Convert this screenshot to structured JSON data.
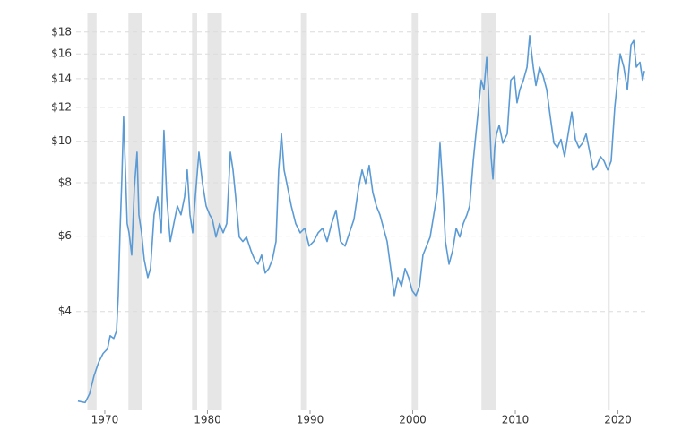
{
  "chart_data": {
    "type": "line",
    "log_scale": true,
    "grid": true,
    "xlim": [
      1967.21,
      2022.66
    ],
    "xticks": [
      1970,
      1980,
      1990,
      2000,
      2010,
      2020
    ],
    "ylim": [
      2.35,
      19.9
    ],
    "yticks": [
      {
        "value": 4,
        "label": "$4"
      },
      {
        "value": 6,
        "label": "$6"
      },
      {
        "value": 8,
        "label": "$8"
      },
      {
        "value": 10,
        "label": "$10"
      },
      {
        "value": 12,
        "label": "$12"
      },
      {
        "value": 14,
        "label": "$14"
      },
      {
        "value": 16,
        "label": "$16"
      },
      {
        "value": 18,
        "label": "$18"
      }
    ],
    "recessions": [
      [
        1968.3,
        1969.2
      ],
      [
        1972.3,
        1973.6
      ],
      [
        1978.5,
        1979.0
      ],
      [
        1980.0,
        1981.4
      ],
      [
        1989.1,
        1989.7
      ],
      [
        1999.9,
        2000.5
      ],
      [
        2006.7,
        2008.1
      ],
      [
        2019.0,
        2019.2
      ]
    ],
    "series": [
      {
        "color": "#5b9bd5",
        "x": [
          1967.38,
          1968.08,
          1968.52,
          1968.95,
          1969.39,
          1969.83,
          1970.26,
          1970.52,
          1970.87,
          1971.14,
          1971.31,
          1971.48,
          1971.66,
          1971.83,
          1972.01,
          1972.18,
          1972.36,
          1972.62,
          1972.88,
          1973.14,
          1973.32,
          1973.58,
          1973.84,
          1974.19,
          1974.45,
          1974.8,
          1975.15,
          1975.5,
          1975.76,
          1976.03,
          1976.38,
          1976.72,
          1977.07,
          1977.42,
          1977.77,
          1978.03,
          1978.3,
          1978.56,
          1978.82,
          1979.17,
          1979.52,
          1979.87,
          1980.22,
          1980.48,
          1980.83,
          1981.18,
          1981.53,
          1981.88,
          1982.23,
          1982.49,
          1982.75,
          1983.1,
          1983.45,
          1983.8,
          1984.24,
          1984.59,
          1984.93,
          1985.28,
          1985.63,
          1985.98,
          1986.33,
          1986.68,
          1986.94,
          1987.21,
          1987.47,
          1987.82,
          1988.17,
          1988.6,
          1989.04,
          1989.48,
          1989.91,
          1990.35,
          1990.79,
          1991.22,
          1991.66,
          1992.1,
          1992.53,
          1992.97,
          1993.41,
          1993.84,
          1994.28,
          1994.72,
          1995.07,
          1995.41,
          1995.76,
          1996.11,
          1996.46,
          1996.81,
          1997.16,
          1997.51,
          1997.86,
          1998.21,
          1998.56,
          1998.91,
          1999.26,
          1999.61,
          1999.96,
          2000.31,
          2000.66,
          2001.0,
          2001.35,
          2001.7,
          2002.05,
          2002.4,
          2002.66,
          2002.93,
          2003.19,
          2003.54,
          2003.89,
          2004.24,
          2004.59,
          2004.93,
          2005.28,
          2005.55,
          2005.9,
          2006.16,
          2006.42,
          2006.68,
          2006.94,
          2007.21,
          2007.38,
          2007.64,
          2007.82,
          2007.99,
          2008.17,
          2008.43,
          2008.78,
          2009.21,
          2009.56,
          2009.91,
          2010.17,
          2010.44,
          2010.79,
          2011.14,
          2011.4,
          2011.75,
          2012.01,
          2012.36,
          2012.71,
          2013.06,
          2013.41,
          2013.76,
          2014.1,
          2014.45,
          2014.8,
          2015.15,
          2015.5,
          2015.85,
          2016.2,
          2016.55,
          2016.9,
          2017.25,
          2017.6,
          2017.95,
          2018.3,
          2018.65,
          2019.0,
          2019.34,
          2019.69,
          2019.96,
          2020.22,
          2020.57,
          2020.92,
          2021.27,
          2021.53,
          2021.79,
          2022.14,
          2022.4,
          2022.58
        ],
        "values": [
          2.47,
          2.45,
          2.57,
          2.83,
          3.04,
          3.19,
          3.27,
          3.51,
          3.46,
          3.6,
          4.36,
          6.11,
          8.16,
          11.4,
          8.57,
          6.42,
          6.11,
          5.42,
          7.78,
          9.43,
          6.73,
          6.11,
          5.29,
          4.8,
          5.04,
          6.73,
          7.41,
          6.11,
          10.6,
          7.41,
          5.83,
          6.42,
          7.06,
          6.73,
          7.41,
          8.57,
          6.73,
          6.11,
          7.41,
          9.43,
          7.97,
          7.06,
          6.73,
          6.57,
          5.97,
          6.42,
          6.11,
          6.42,
          9.43,
          8.57,
          7.41,
          5.97,
          5.83,
          5.97,
          5.55,
          5.29,
          5.16,
          5.42,
          4.92,
          5.04,
          5.29,
          5.83,
          8.57,
          10.4,
          8.57,
          7.78,
          7.06,
          6.42,
          6.11,
          6.26,
          5.69,
          5.83,
          6.11,
          6.26,
          5.83,
          6.42,
          6.9,
          5.83,
          5.69,
          6.11,
          6.57,
          7.78,
          8.57,
          7.97,
          8.78,
          7.59,
          7.06,
          6.73,
          6.26,
          5.83,
          5.04,
          4.36,
          4.8,
          4.58,
          5.04,
          4.8,
          4.47,
          4.36,
          4.58,
          5.42,
          5.69,
          5.97,
          6.73,
          7.59,
          9.9,
          7.78,
          5.83,
          5.16,
          5.55,
          6.26,
          5.97,
          6.42,
          6.73,
          7.06,
          8.99,
          10.4,
          12.0,
          13.9,
          13.2,
          15.7,
          13.2,
          9.21,
          8.16,
          9.66,
          10.4,
          10.9,
          9.9,
          10.4,
          13.9,
          14.2,
          12.3,
          13.2,
          13.9,
          14.9,
          17.66,
          14.9,
          13.5,
          14.9,
          14.2,
          13.2,
          11.4,
          9.9,
          9.66,
          10.1,
          9.21,
          10.4,
          11.7,
          10.1,
          9.66,
          9.9,
          10.4,
          9.43,
          8.57,
          8.78,
          9.21,
          8.99,
          8.57,
          8.99,
          12.0,
          13.9,
          16.0,
          14.9,
          13.2,
          16.8,
          17.2,
          14.9,
          15.3,
          13.9,
          14.6
        ]
      }
    ]
  }
}
